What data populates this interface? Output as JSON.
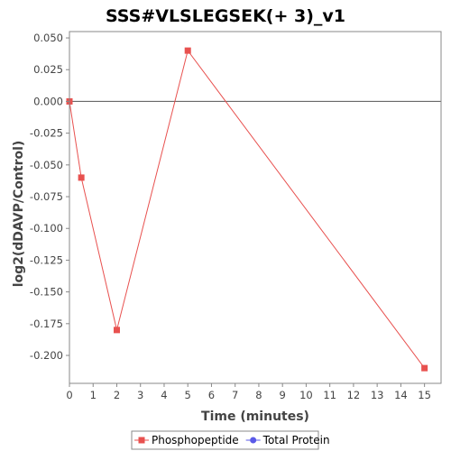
{
  "chart_data": {
    "type": "line",
    "title": "SSS#VLSLEGSEK(+ 3)_v1",
    "xlabel": "Time (minutes)",
    "ylabel": "log2(dDAVP/Control)",
    "xlim": [
      0,
      15.7
    ],
    "ylim": [
      -0.222,
      0.055
    ],
    "x_ticks": [
      0,
      1,
      2,
      3,
      4,
      5,
      6,
      7,
      8,
      9,
      10,
      11,
      12,
      13,
      14,
      15
    ],
    "y_ticks": [
      0.05,
      0.025,
      0,
      -0.025,
      -0.05,
      -0.075,
      -0.1,
      -0.125,
      -0.15,
      -0.175,
      -0.2
    ],
    "y_tick_labels": [
      "0.050",
      "0.025",
      "0.000",
      "-0.025",
      "-0.050",
      "-0.075",
      "-0.100",
      "-0.125",
      "-0.150",
      "-0.175",
      "-0.200"
    ],
    "zero_line": true,
    "grid": false,
    "legend_position": "bottom",
    "series": [
      {
        "name": "Phosphopeptide",
        "color": "#e8514f",
        "marker": "square",
        "x": [
          0,
          0.5,
          2,
          5,
          15
        ],
        "y": [
          0.0,
          -0.06,
          -0.18,
          0.04,
          -0.21
        ]
      },
      {
        "name": "Total Protein",
        "color": "#5a5ae8",
        "marker": "circle",
        "x": [],
        "y": []
      }
    ]
  }
}
